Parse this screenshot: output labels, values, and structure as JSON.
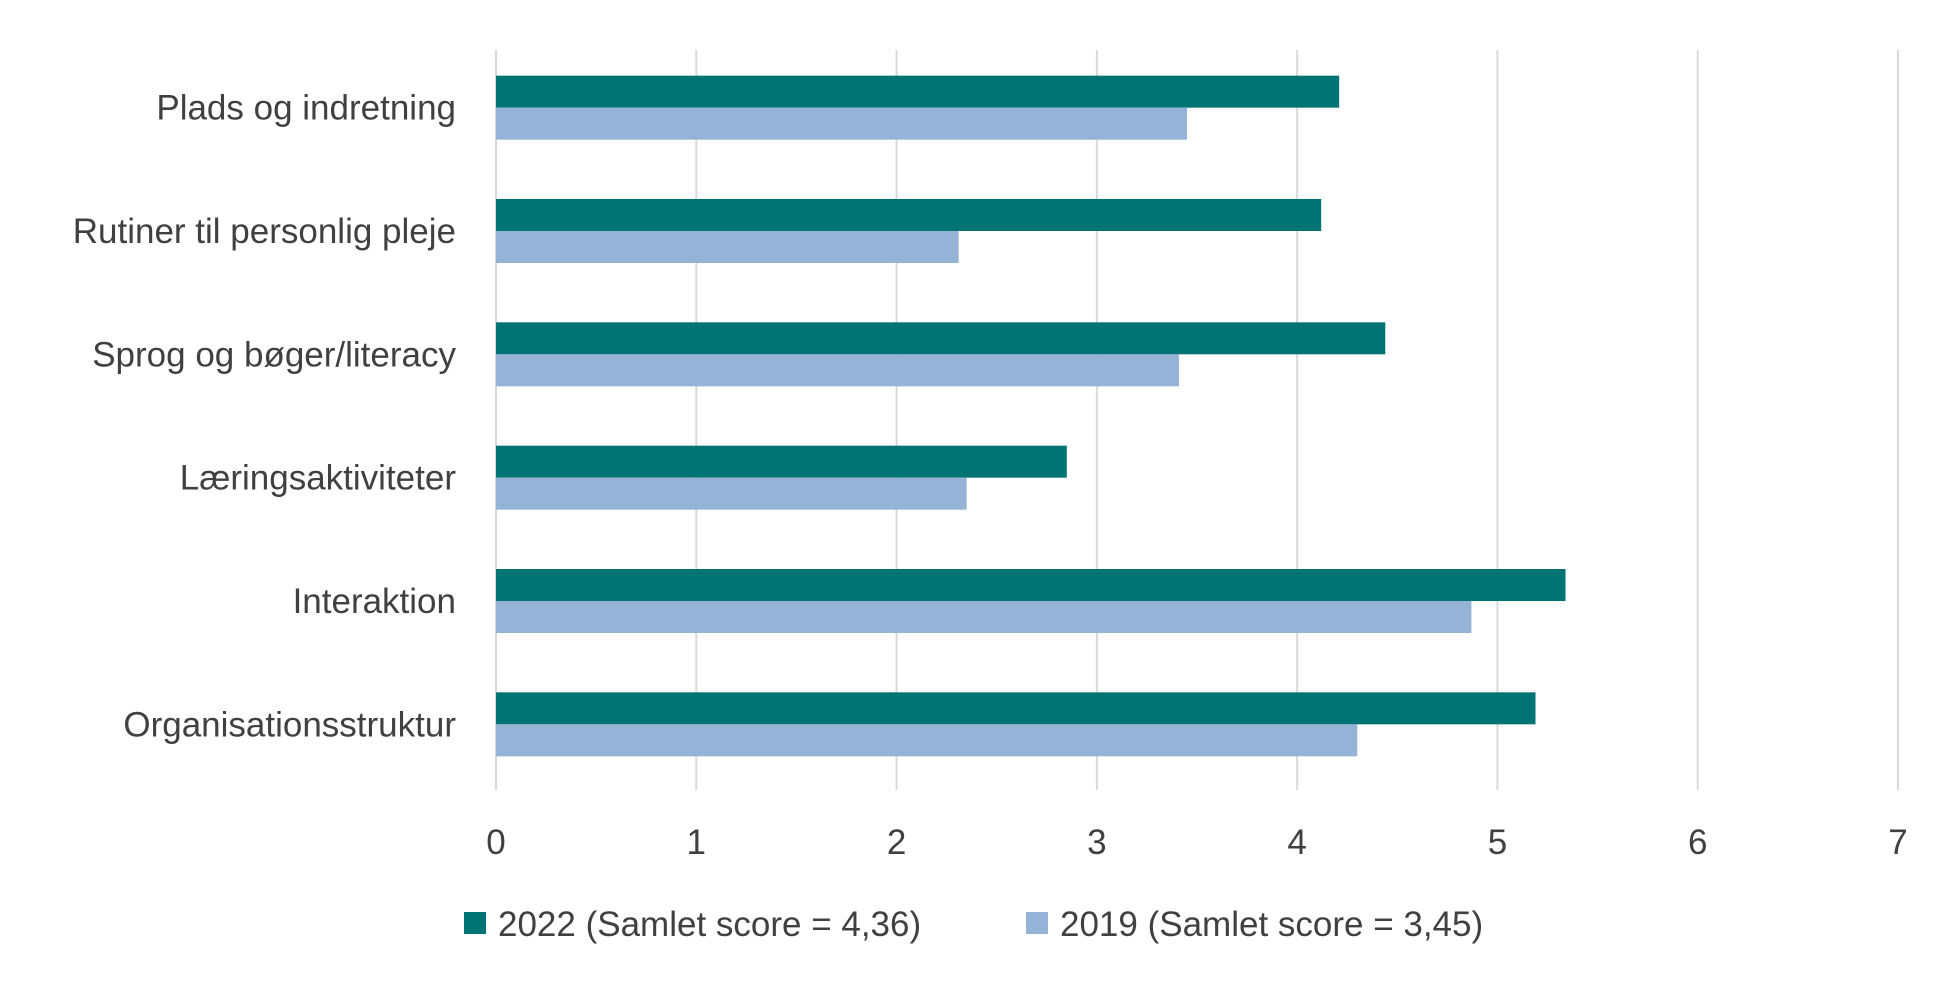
{
  "chart_data": {
    "type": "bar",
    "orientation": "horizontal",
    "title": "",
    "xlabel": "",
    "ylabel": "",
    "xlim": [
      0,
      7
    ],
    "ticks": [
      "0",
      "1",
      "2",
      "3",
      "4",
      "5",
      "6",
      "7"
    ],
    "grid": true,
    "legend_position": "bottom",
    "categories": [
      "Plads og indretning",
      "Rutiner til personlig pleje",
      "Sprog og bøger/literacy",
      "Læringsaktiviteter",
      "Interaktion",
      "Organisationsstruktur"
    ],
    "series": [
      {
        "name": "2022 (Samlet score = 4,36)",
        "color": "#007474",
        "values": [
          4.21,
          4.12,
          4.44,
          2.85,
          5.34,
          5.19
        ]
      },
      {
        "name": "2019 (Samlet score = 3,45)",
        "color": "#95B3D7",
        "values": [
          3.45,
          2.31,
          3.41,
          2.35,
          4.87,
          4.3
        ]
      }
    ],
    "grid_color": "#D9D9D9"
  }
}
